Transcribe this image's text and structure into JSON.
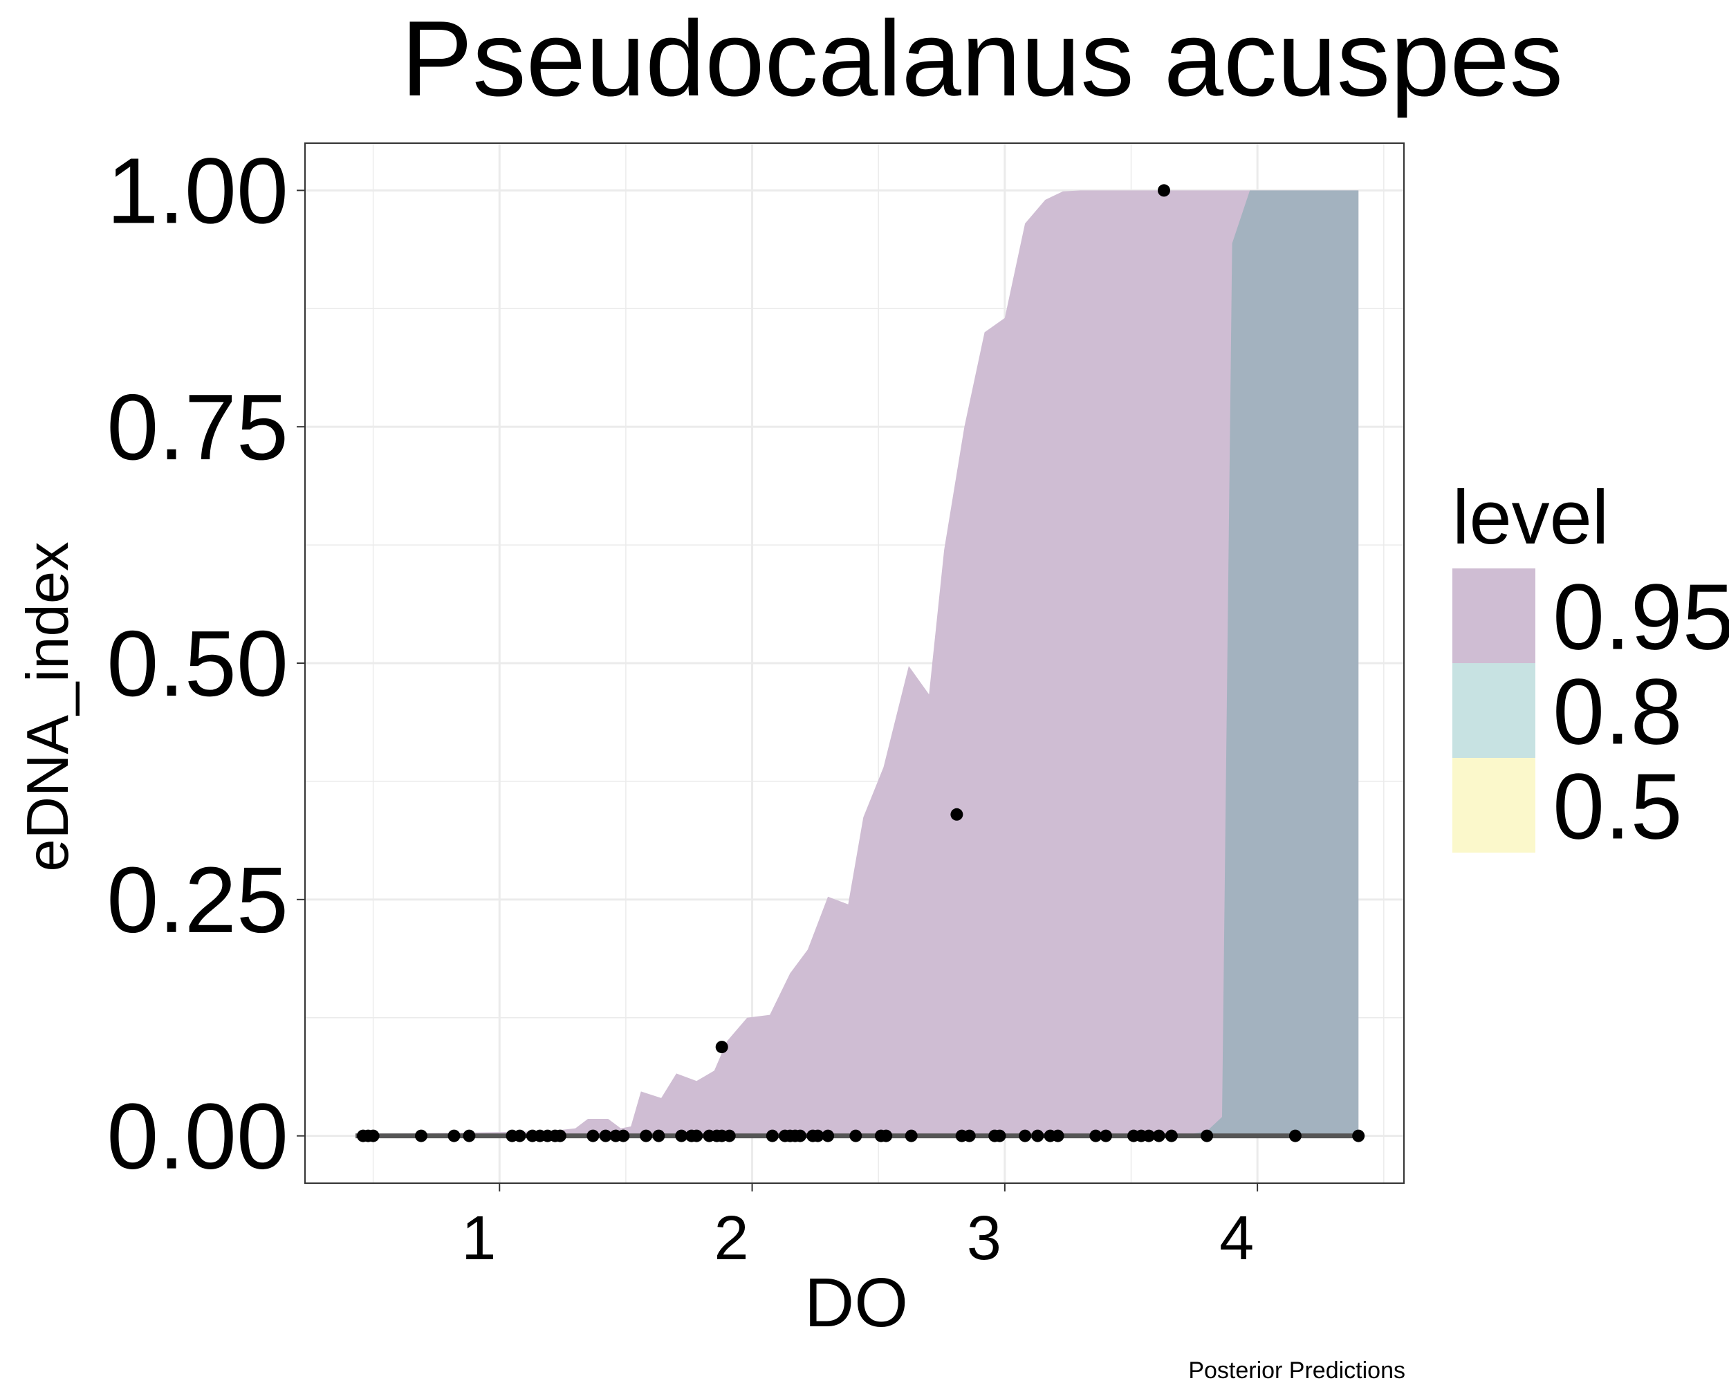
{
  "chart_data": {
    "type": "area",
    "title": "Pseudocalanus acuspes",
    "xlabel": "DO",
    "ylabel": "eDNA_index",
    "caption": "Posterior Predictions",
    "xlim": [
      0.23,
      4.58
    ],
    "ylim": [
      -0.05,
      1.05
    ],
    "x_ticks": [
      1,
      2,
      3,
      4
    ],
    "x_tick_labels": [
      "1",
      "2",
      "3",
      "4"
    ],
    "y_ticks": [
      0,
      0.25,
      0.5,
      0.75,
      1.0
    ],
    "y_tick_labels": [
      "0.00",
      "0.25",
      "0.50",
      "0.75",
      "1.00"
    ],
    "grid": true,
    "legend": {
      "title": "level",
      "position": "right",
      "items": [
        {
          "label": "0.95",
          "color": "#cfbdd3"
        },
        {
          "label": "0.8",
          "color": "#c7e2e2"
        },
        {
          "label": "0.5",
          "color": "#fbf8cb"
        }
      ]
    },
    "colors": {
      "band_095": "#cfbdd3",
      "band_080": "#c7e2e2",
      "band_050": "#fbf8cb",
      "overlap": "#a3b2bf",
      "median_line": "#555555",
      "points": "#000000"
    },
    "band_095": {
      "x": [
        0.43,
        0.75,
        1.0,
        1.2,
        1.3,
        1.35,
        1.43,
        1.48,
        1.52,
        1.56,
        1.64,
        1.7,
        1.78,
        1.85,
        1.9,
        1.98,
        2.07,
        2.15,
        2.22,
        2.3,
        2.38,
        2.44,
        2.52,
        2.62,
        2.7,
        2.76,
        2.84,
        2.92,
        3.0,
        3.08,
        3.16,
        3.23,
        3.3,
        3.38,
        3.5,
        3.63,
        3.7,
        3.9,
        4.0,
        4.4
      ],
      "upper": [
        0.002,
        0.003,
        0.004,
        0.005,
        0.008,
        0.018,
        0.018,
        0.008,
        0.01,
        0.047,
        0.04,
        0.066,
        0.058,
        0.069,
        0.1,
        0.125,
        0.128,
        0.172,
        0.197,
        0.253,
        0.245,
        0.337,
        0.39,
        0.497,
        0.467,
        0.62,
        0.75,
        0.85,
        0.865,
        0.965,
        0.99,
        0.999,
        1.0,
        1.0,
        1.0,
        1.0,
        1.0,
        1.0,
        1.0,
        1.0
      ],
      "lower": [
        0.0,
        0.0,
        0.0,
        0.0,
        0.0,
        0.0,
        0.0,
        0.0,
        0.0,
        0.0,
        0.0,
        0.0,
        0.0,
        0.0,
        0.0,
        0.0,
        0.0,
        0.0,
        0.0,
        0.0,
        0.0,
        0.0,
        0.0,
        0.0,
        0.0,
        0.0,
        0.0,
        0.0,
        0.0,
        0.0,
        0.0,
        0.0,
        0.0,
        0.0,
        0.0,
        0.0,
        0.0,
        0.0,
        0.0,
        0.0
      ]
    },
    "band_080": {
      "x": [
        0.43,
        3.7,
        3.8,
        3.86,
        3.9,
        3.97,
        4.0,
        4.4
      ],
      "upper": [
        0.0,
        0.0,
        0.005,
        0.02,
        0.944,
        1.0,
        1.0,
        1.0
      ],
      "lower": [
        0.0,
        0.0,
        0.0,
        0.0,
        0.0,
        0.0,
        0.0,
        0.0
      ]
    },
    "median_line": {
      "x": [
        0.43,
        4.4
      ],
      "y": [
        0.0,
        0.0
      ]
    },
    "points": {
      "x": [
        0.46,
        0.48,
        0.5,
        0.69,
        0.82,
        0.88,
        1.05,
        1.08,
        1.13,
        1.16,
        1.19,
        1.22,
        1.24,
        1.37,
        1.42,
        1.46,
        1.49,
        1.58,
        1.63,
        1.72,
        1.76,
        1.78,
        1.83,
        1.86,
        1.88,
        1.91,
        2.08,
        2.13,
        2.15,
        2.17,
        2.19,
        2.24,
        2.26,
        2.3,
        2.41,
        2.51,
        2.53,
        2.63,
        2.83,
        2.86,
        2.96,
        2.98,
        3.08,
        3.13,
        3.18,
        3.21,
        3.36,
        3.4,
        3.51,
        3.54,
        3.57,
        3.61,
        3.66,
        3.8,
        4.15,
        4.4,
        1.88,
        2.81,
        3.63
      ],
      "y": [
        0,
        0,
        0,
        0,
        0,
        0,
        0,
        0,
        0,
        0,
        0,
        0,
        0,
        0,
        0,
        0,
        0,
        0,
        0,
        0,
        0,
        0,
        0,
        0,
        0,
        0,
        0,
        0,
        0,
        0,
        0,
        0,
        0,
        0,
        0,
        0,
        0,
        0,
        0,
        0,
        0,
        0,
        0,
        0,
        0,
        0,
        0,
        0,
        0,
        0,
        0,
        0,
        0,
        0,
        0,
        0,
        0.094,
        0.34,
        1.0
      ]
    }
  }
}
